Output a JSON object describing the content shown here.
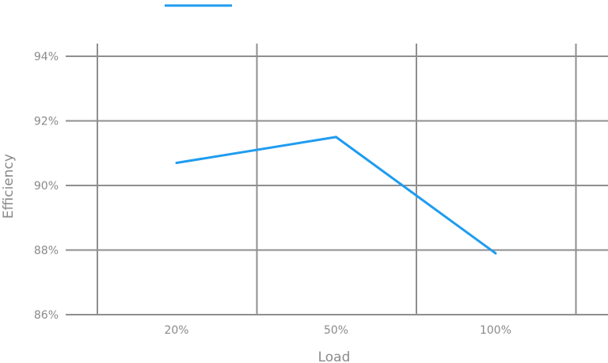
{
  "chart_data": {
    "type": "line",
    "title": "",
    "xlabel": "Load",
    "ylabel": "Efficiency",
    "categories": [
      "20%",
      "50%",
      "100%"
    ],
    "series": [
      {
        "values": [
          90.7,
          91.5,
          87.9
        ],
        "color": "#1f9cf0"
      }
    ],
    "ylim": [
      86,
      94
    ],
    "yticks": [
      86,
      88,
      90,
      92,
      94
    ],
    "ytick_labels": [
      "86%",
      "88%",
      "90%",
      "92%",
      "94%"
    ],
    "grid": true,
    "legend": "top-left"
  }
}
